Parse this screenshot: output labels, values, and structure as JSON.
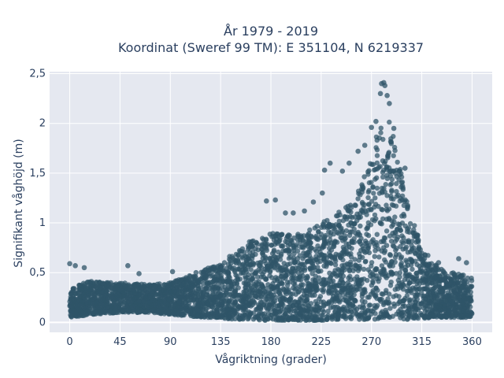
{
  "chart_data": {
    "type": "scatter",
    "title_lines": [
      "År 1979 - 2019",
      "Koordinat (Sweref 99 TM): E 351104, N 6219337"
    ],
    "xlabel": "Vågriktning (grader)",
    "ylabel": "Signifikant våghöjd (m)",
    "xlim": [
      -18,
      378
    ],
    "ylim": [
      -0.1,
      2.52
    ],
    "x_ticks": [
      0,
      45,
      90,
      135,
      180,
      225,
      270,
      315,
      360
    ],
    "x_tick_labels": [
      "0",
      "45",
      "90",
      "135",
      "180",
      "225",
      "270",
      "315",
      "360"
    ],
    "y_ticks": [
      0,
      0.5,
      1,
      1.5,
      2,
      2.5
    ],
    "y_tick_labels": [
      "0",
      "0,5",
      "1",
      "1,5",
      "2",
      "2,5"
    ],
    "grid": true,
    "marker_color": "#2f5468",
    "background_color": "#e5e8f0",
    "envelope": {
      "x": [
        0,
        20,
        45,
        70,
        90,
        110,
        135,
        150,
        165,
        180,
        195,
        210,
        225,
        240,
        255,
        265,
        272,
        278,
        282,
        288,
        295,
        300,
        305,
        315,
        330,
        345,
        360
      ],
      "upper": [
        0.35,
        0.42,
        0.4,
        0.38,
        0.4,
        0.48,
        0.6,
        0.72,
        0.85,
        0.9,
        0.88,
        0.9,
        1.0,
        1.1,
        1.25,
        1.5,
        1.8,
        2.0,
        2.15,
        1.95,
        1.6,
        1.3,
        1.1,
        0.75,
        0.55,
        0.5,
        0.45
      ],
      "lower": [
        0.05,
        0.08,
        0.1,
        0.1,
        0.08,
        0.06,
        0.04,
        0.03,
        0.02,
        0.02,
        0.02,
        0.02,
        0.02,
        0.03,
        0.03,
        0.03,
        0.03,
        0.03,
        0.03,
        0.03,
        0.03,
        0.03,
        0.03,
        0.04,
        0.05,
        0.05,
        0.05
      ]
    },
    "outliers": [
      {
        "x": 0,
        "y": 0.59
      },
      {
        "x": 5,
        "y": 0.57
      },
      {
        "x": 13,
        "y": 0.55
      },
      {
        "x": 52,
        "y": 0.57
      },
      {
        "x": 62,
        "y": 0.49
      },
      {
        "x": 92,
        "y": 0.51
      },
      {
        "x": 113,
        "y": 0.5
      },
      {
        "x": 176,
        "y": 1.22
      },
      {
        "x": 184,
        "y": 1.23
      },
      {
        "x": 193,
        "y": 1.1
      },
      {
        "x": 200,
        "y": 1.1
      },
      {
        "x": 210,
        "y": 1.12
      },
      {
        "x": 218,
        "y": 1.21
      },
      {
        "x": 226,
        "y": 1.3
      },
      {
        "x": 228,
        "y": 1.53
      },
      {
        "x": 233,
        "y": 1.6
      },
      {
        "x": 244,
        "y": 1.52
      },
      {
        "x": 250,
        "y": 1.6
      },
      {
        "x": 258,
        "y": 1.72
      },
      {
        "x": 264,
        "y": 1.78
      },
      {
        "x": 270,
        "y": 1.96
      },
      {
        "x": 274,
        "y": 2.02
      },
      {
        "x": 278,
        "y": 2.3
      },
      {
        "x": 279,
        "y": 2.4
      },
      {
        "x": 281,
        "y": 2.41
      },
      {
        "x": 282,
        "y": 2.38
      },
      {
        "x": 284,
        "y": 2.28
      },
      {
        "x": 286,
        "y": 2.2
      },
      {
        "x": 290,
        "y": 1.95
      },
      {
        "x": 300,
        "y": 1.55
      },
      {
        "x": 330,
        "y": 0.6
      },
      {
        "x": 348,
        "y": 0.64
      },
      {
        "x": 355,
        "y": 0.6
      }
    ]
  }
}
